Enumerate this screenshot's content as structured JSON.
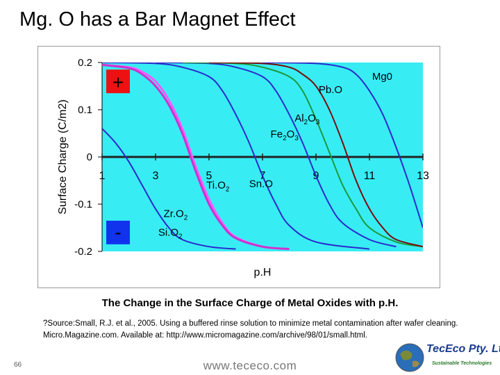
{
  "slide": {
    "title": "Mg. O has a Bar Magnet Effect",
    "caption": "The Change in the Surface Charge of Metal Oxides with p.H.",
    "source": "?Source:Small, R.J. et al., 2005. Using a buffered rinse solution to minimize metal contamination after wafer cleaning. Micro.Magazine.com. Available at: http://www.micromagazine.com/archive/98/01/small.html.",
    "page_number": "66",
    "url": "www.tececo.com",
    "logo_text": "TecEco Pty. Ltd.",
    "logo_tagline": "Sustainable Technologies"
  },
  "chart_data": {
    "type": "line",
    "xlabel": "p.H",
    "ylabel": "Surface Charge (C/m2)",
    "xlim": [
      1,
      13
    ],
    "ylim": [
      -0.2,
      0.2
    ],
    "x_ticks": [
      "1",
      "3",
      "5",
      "7",
      "9",
      "11",
      "13"
    ],
    "y_ticks": [
      "0.2",
      "0.1",
      "0",
      "-0.1",
      "-0.2"
    ],
    "plot_background": "#38ecf4",
    "plus_label": "+",
    "minus_label": "-",
    "series": [
      {
        "name": "SiO2",
        "color": "#2a2acc",
        "x": [
          1,
          1.5,
          2,
          2.5,
          3,
          3.5,
          4,
          5,
          6
        ],
        "y": [
          0.06,
          0.03,
          -0.01,
          -0.06,
          -0.11,
          -0.15,
          -0.175,
          -0.19,
          -0.195
        ]
      },
      {
        "name": "ZrO2",
        "color": "#ff55ff",
        "x": [
          1,
          2,
          2.5,
          3,
          3.5,
          4,
          4.5,
          5,
          5.5,
          6,
          7,
          8
        ],
        "y": [
          0.195,
          0.19,
          0.18,
          0.16,
          0.12,
          0.06,
          -0.02,
          -0.09,
          -0.14,
          -0.17,
          -0.19,
          -0.195
        ]
      },
      {
        "name": "TiO2",
        "color": "#cc33cc",
        "x": [
          1,
          2,
          2.5,
          3,
          3.5,
          4,
          4.5,
          5,
          5.5,
          6,
          7,
          8
        ],
        "y": [
          0.195,
          0.188,
          0.175,
          0.15,
          0.11,
          0.05,
          -0.03,
          -0.1,
          -0.145,
          -0.172,
          -0.19,
          -0.195
        ]
      },
      {
        "name": "SnO",
        "color": "#2a2acc",
        "x": [
          1,
          3,
          4,
          5,
          5.5,
          6,
          6.5,
          7,
          7.5,
          8,
          9,
          11
        ],
        "y": [
          0.2,
          0.198,
          0.19,
          0.17,
          0.14,
          0.09,
          0.03,
          -0.04,
          -0.1,
          -0.145,
          -0.18,
          -0.195
        ]
      },
      {
        "name": "Fe2O3",
        "color": "#2a2acc",
        "x": [
          3,
          5,
          6,
          7,
          7.5,
          8,
          8.5,
          9,
          9.5,
          10,
          11,
          12
        ],
        "y": [
          0.2,
          0.198,
          0.19,
          0.17,
          0.14,
          0.09,
          0.03,
          -0.04,
          -0.1,
          -0.14,
          -0.175,
          -0.19
        ]
      },
      {
        "name": "Al2O3",
        "color": "#1a9a3a",
        "x": [
          4,
          6,
          7,
          8,
          8.5,
          9,
          9.5,
          10,
          10.5,
          11,
          12,
          13
        ],
        "y": [
          0.2,
          0.198,
          0.19,
          0.17,
          0.14,
          0.08,
          0.01,
          -0.06,
          -0.11,
          -0.15,
          -0.18,
          -0.19
        ]
      },
      {
        "name": "PbO",
        "color": "#7a0a0a",
        "x": [
          5,
          7,
          8,
          8.5,
          9,
          9.5,
          10,
          10.5,
          11,
          11.5,
          12,
          13
        ],
        "y": [
          0.2,
          0.198,
          0.19,
          0.175,
          0.15,
          0.1,
          0.03,
          -0.05,
          -0.11,
          -0.15,
          -0.175,
          -0.19
        ]
      },
      {
        "name": "Mg0",
        "color": "#2a2acc",
        "x": [
          7,
          9,
          10,
          10.5,
          11,
          11.5,
          12,
          12.5,
          13
        ],
        "y": [
          0.2,
          0.198,
          0.19,
          0.175,
          0.14,
          0.09,
          0.02,
          -0.06,
          -0.15
        ]
      }
    ],
    "series_labels": [
      {
        "text": "Pb.O",
        "x": 9.1,
        "y": 0.135
      },
      {
        "text": "Mg0",
        "x": 11.1,
        "y": 0.163
      },
      {
        "text": "Al2O3",
        "x": 8.2,
        "y": 0.075
      },
      {
        "text": "Fe2O3",
        "x": 7.3,
        "y": 0.041
      },
      {
        "text": "Ti.O2",
        "x": 4.9,
        "y": -0.067
      },
      {
        "text": "Sn.O",
        "x": 6.5,
        "y": -0.064
      },
      {
        "text": "Zr.O2",
        "x": 3.3,
        "y": -0.127
      },
      {
        "text": "Si.O2",
        "x": 3.1,
        "y": -0.167
      }
    ]
  }
}
